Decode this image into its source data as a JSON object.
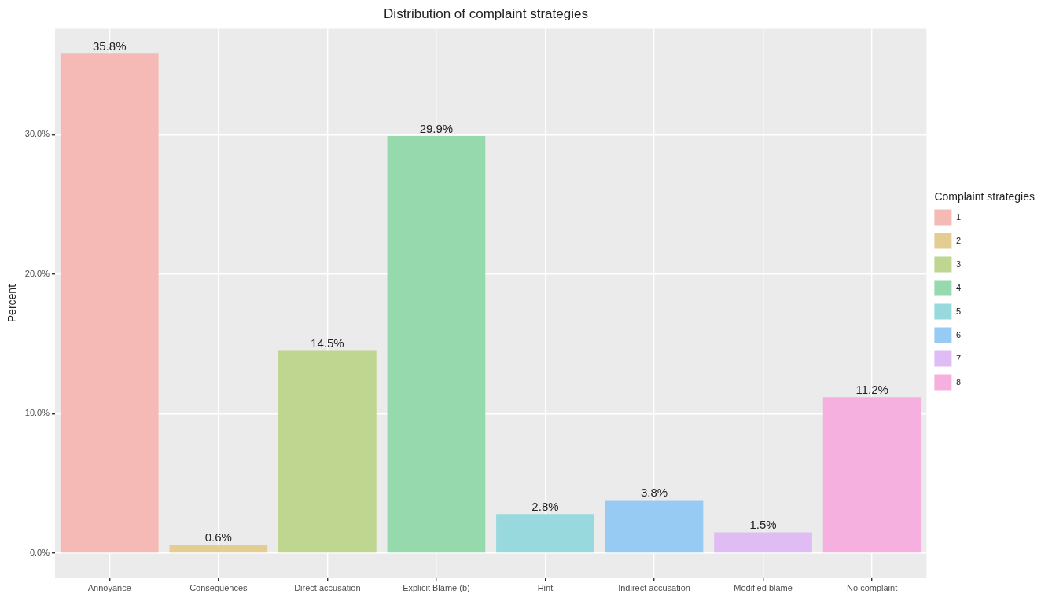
{
  "chart_data": {
    "type": "bar",
    "title": "Distribution of complaint strategies",
    "ylabel": "Percent",
    "legend_title": "Complaint strategies",
    "categories": [
      "Annoyance",
      "Consequences",
      "Direct accusation",
      "Explicit Blame (b)",
      "Hint",
      "Indirect accusation",
      "Modified blame",
      "No complaint"
    ],
    "series": [
      {
        "name": "1",
        "color": "#f5bab6",
        "values": [
          35.8,
          null,
          null,
          null,
          null,
          null,
          null,
          null
        ],
        "value_labels": [
          "35.8%",
          null,
          null,
          null,
          null,
          null,
          null,
          null
        ]
      },
      {
        "name": "2",
        "color": "#e3cd93",
        "values": [
          null,
          0.6,
          null,
          null,
          null,
          null,
          null,
          null
        ],
        "value_labels": [
          null,
          "0.6%",
          null,
          null,
          null,
          null,
          null,
          null
        ]
      },
      {
        "name": "3",
        "color": "#bed68f",
        "values": [
          null,
          null,
          14.5,
          null,
          null,
          null,
          null,
          null
        ],
        "value_labels": [
          null,
          null,
          "14.5%",
          null,
          null,
          null,
          null,
          null
        ]
      },
      {
        "name": "4",
        "color": "#96d9ad",
        "values": [
          null,
          null,
          null,
          29.9,
          null,
          null,
          null,
          null
        ],
        "value_labels": [
          null,
          null,
          null,
          "29.9%",
          null,
          null,
          null,
          null
        ]
      },
      {
        "name": "5",
        "color": "#97d9dd",
        "values": [
          null,
          null,
          null,
          null,
          2.8,
          null,
          null,
          null
        ],
        "value_labels": [
          null,
          null,
          null,
          null,
          "2.8%",
          null,
          null,
          null
        ]
      },
      {
        "name": "6",
        "color": "#98cbf4",
        "values": [
          null,
          null,
          null,
          null,
          null,
          3.8,
          null,
          null
        ],
        "value_labels": [
          null,
          null,
          null,
          null,
          null,
          "3.8%",
          null,
          null
        ]
      },
      {
        "name": "7",
        "color": "#e0bcf4",
        "values": [
          null,
          null,
          null,
          null,
          null,
          null,
          1.5,
          null
        ],
        "value_labels": [
          null,
          null,
          null,
          null,
          null,
          null,
          "1.5%",
          null
        ]
      },
      {
        "name": "8",
        "color": "#f6b0df",
        "values": [
          null,
          null,
          null,
          null,
          null,
          null,
          null,
          11.2
        ],
        "value_labels": [
          null,
          null,
          null,
          null,
          null,
          null,
          null,
          "11.2%"
        ]
      }
    ],
    "ylim": [
      -1.79,
      37.6
    ],
    "yticks": [
      {
        "value": 0,
        "label": "0.0%"
      },
      {
        "value": 10,
        "label": "10.0%"
      },
      {
        "value": 20,
        "label": "20.0%"
      },
      {
        "value": 30,
        "label": "30.0%"
      }
    ],
    "grid": true,
    "legend": "right"
  }
}
